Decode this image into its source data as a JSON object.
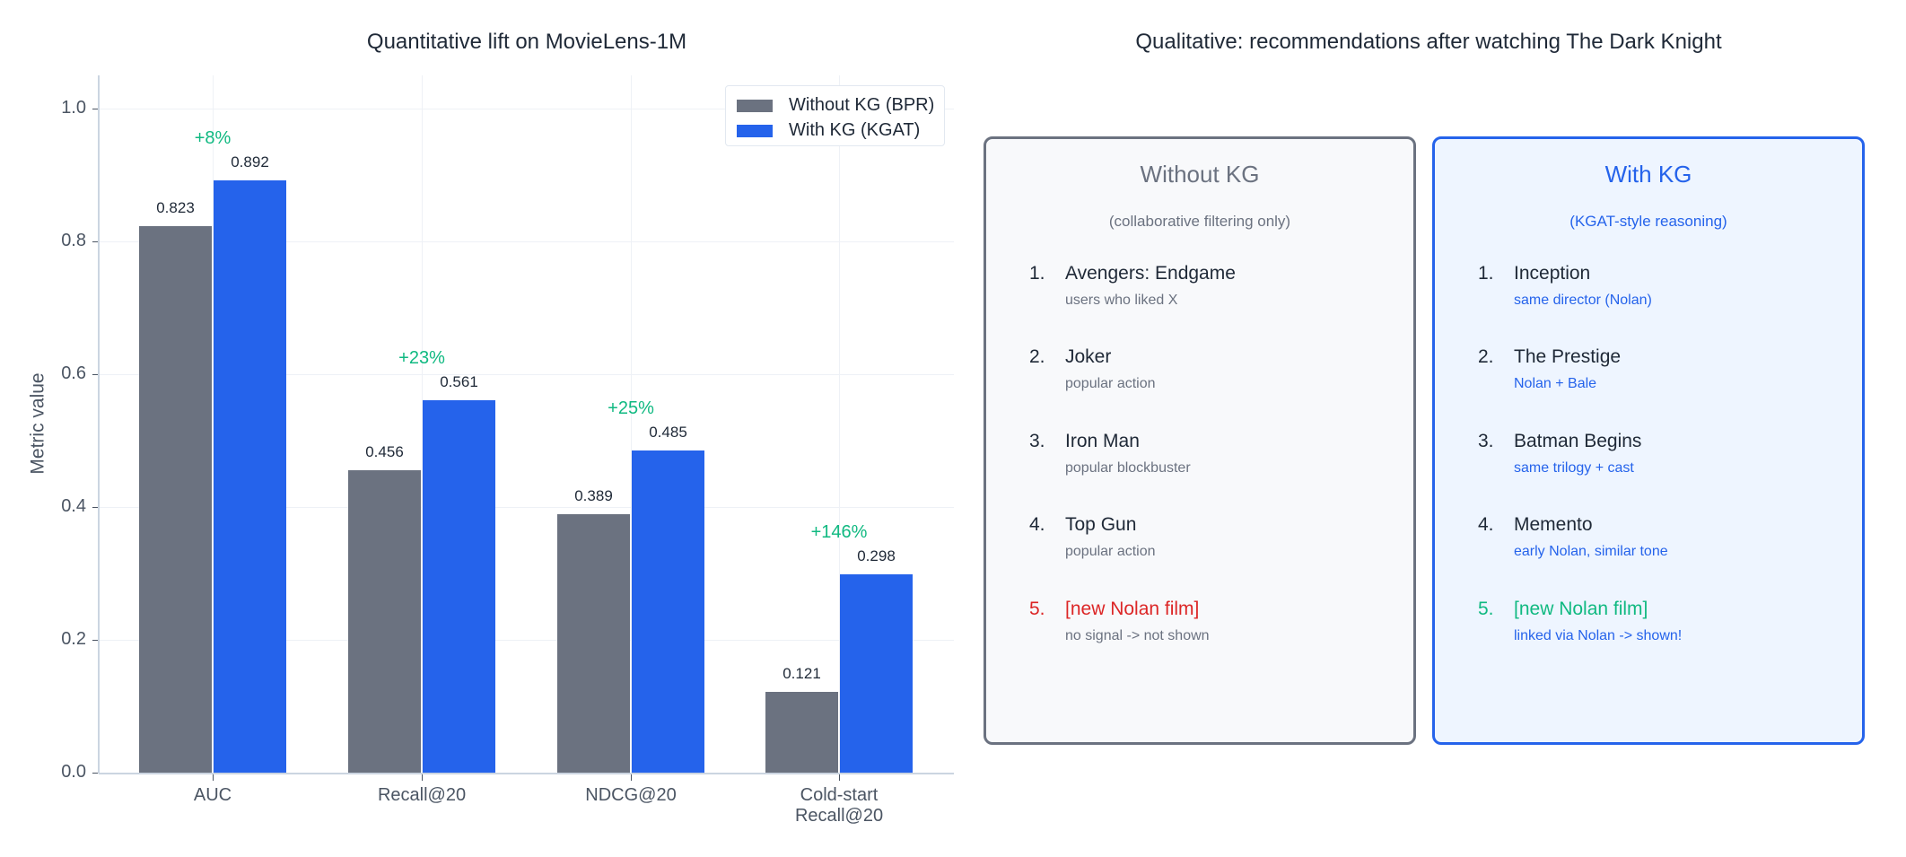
{
  "left_panel": {
    "title": "Quantitative lift on MovieLens-1M",
    "ylabel": "Metric value",
    "yticks": [
      "0.0",
      "0.2",
      "0.4",
      "0.6",
      "0.8",
      "1.0"
    ],
    "legend": [
      {
        "label": "Without KG (BPR)",
        "color": "#6b7280"
      },
      {
        "label": "With KG (KGAT)",
        "color": "#2563eb"
      }
    ],
    "groups": [
      {
        "category": "AUC",
        "without": "0.823",
        "with": "0.892",
        "lift": "+8%"
      },
      {
        "category": "Recall@20",
        "without": "0.456",
        "with": "0.561",
        "lift": "+23%"
      },
      {
        "category": "NDCG@20",
        "without": "0.389",
        "with": "0.485",
        "lift": "+25%"
      },
      {
        "category": "Cold-start\nRecall@20",
        "without": "0.121",
        "with": "0.298",
        "lift": "+146%"
      }
    ]
  },
  "right_panel": {
    "title": "Qualitative: recommendations after watching The Dark Knight",
    "without_card": {
      "title": "Without KG",
      "subtitle": "(collaborative filtering only)",
      "items": [
        {
          "num": "1.",
          "title": "Avengers: Endgame",
          "reason": "users who liked X"
        },
        {
          "num": "2.",
          "title": "Joker",
          "reason": "popular action"
        },
        {
          "num": "3.",
          "title": "Iron Man",
          "reason": "popular blockbuster"
        },
        {
          "num": "4.",
          "title": "Top Gun",
          "reason": "popular action"
        },
        {
          "num": "5.",
          "title": "[new Nolan film]",
          "reason": "no signal -> not shown"
        }
      ]
    },
    "with_card": {
      "title": "With KG",
      "subtitle": "(KGAT-style reasoning)",
      "items": [
        {
          "num": "1.",
          "title": "Inception",
          "reason": "same director (Nolan)"
        },
        {
          "num": "2.",
          "title": "The Prestige",
          "reason": "Nolan + Bale"
        },
        {
          "num": "3.",
          "title": "Batman Begins",
          "reason": "same trilogy + cast"
        },
        {
          "num": "4.",
          "title": "Memento",
          "reason": "early Nolan, similar tone"
        },
        {
          "num": "5.",
          "title": "[new Nolan film]",
          "reason": "linked via Nolan -> shown!"
        }
      ]
    }
  },
  "colors": {
    "without": "#6b7280",
    "with": "#2563eb",
    "lift": "#10b981",
    "miss": "#dc2626"
  },
  "chart_data": {
    "type": "bar",
    "title": "Quantitative lift on MovieLens-1M",
    "xlabel": "",
    "ylabel": "Metric value",
    "ylim": [
      0,
      1.05
    ],
    "yticks": [
      0.0,
      0.2,
      0.4,
      0.6,
      0.8,
      1.0
    ],
    "grid": true,
    "legend_position": "upper right",
    "categories": [
      "AUC",
      "Recall@20",
      "NDCG@20",
      "Cold-start Recall@20"
    ],
    "series": [
      {
        "name": "Without KG (BPR)",
        "color": "#6b7280",
        "values": [
          0.823,
          0.456,
          0.389,
          0.121
        ]
      },
      {
        "name": "With KG (KGAT)",
        "color": "#2563eb",
        "values": [
          0.892,
          0.561,
          0.485,
          0.298
        ]
      }
    ],
    "annotations": [
      "+8%",
      "+23%",
      "+25%",
      "+146%"
    ]
  }
}
